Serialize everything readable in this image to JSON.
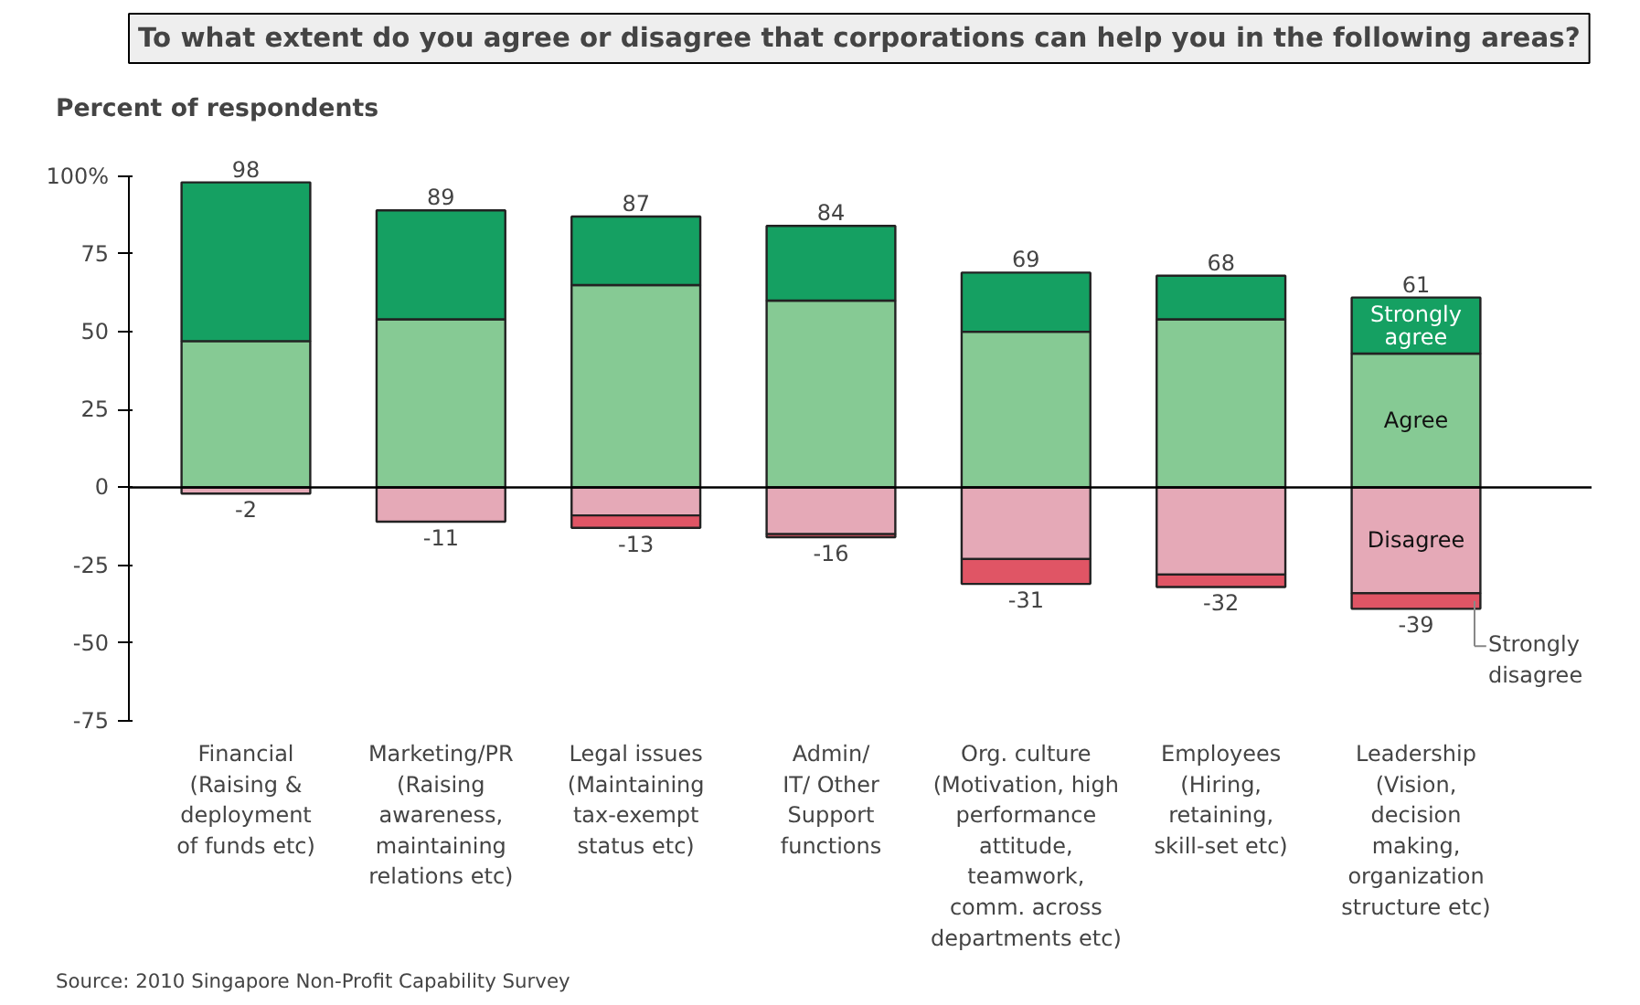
{
  "chart_data": {
    "type": "bar",
    "stacked": true,
    "title": "To what extent do you agree or disagree that corporations can help you in the following areas?",
    "ylabel": "Percent of respondents",
    "categories": [
      "Financial\n(Raising &\ndeployment\nof funds etc)",
      "Marketing/PR\n(Raising\nawareness,\nmaintaining\nrelations etc)",
      "Legal issues\n(Maintaining\ntax-exempt\nstatus etc)",
      "Admin/\nIT/ Other\nSupport\nfunctions",
      "Org. culture\n(Motivation, high\nperformance\nattitude,\nteamwork,\ncomm. across\ndepartments etc)",
      "Employees\n(Hiring,\nretaining,\nskill-set etc)",
      "Leadership\n(Vision,\ndecision\nmaking,\norganization\nstructure etc)"
    ],
    "series": [
      {
        "name": "Agree",
        "color": "#86ca94",
        "values": [
          47,
          54,
          65,
          60,
          50,
          54,
          43
        ]
      },
      {
        "name": "Strongly agree",
        "color": "#15a062",
        "values": [
          51,
          35,
          22,
          24,
          19,
          14,
          18
        ]
      },
      {
        "name": "Disagree",
        "color": "#e5a9b7",
        "values": [
          -2,
          -11,
          -9,
          -15,
          -23,
          -28,
          -34
        ]
      },
      {
        "name": "Strongly disagree",
        "color": "#e05565",
        "values": [
          0,
          0,
          -4,
          -1,
          -8,
          -4,
          -5
        ]
      }
    ],
    "totals": [
      [
        "98",
        "-2"
      ],
      [
        "89",
        "-11"
      ],
      [
        "87",
        "-13"
      ],
      [
        "84",
        "-16"
      ],
      [
        "69",
        "-31"
      ],
      [
        "68",
        "-32"
      ],
      [
        "61",
        "-39"
      ]
    ],
    "ylim": [
      -75,
      100
    ],
    "yticks": [
      {
        "value": 100,
        "label": "100%"
      },
      75,
      50,
      25,
      0,
      -25,
      -50,
      -75
    ],
    "ref_lines": [
      {
        "axis": "y",
        "value": 0
      }
    ],
    "grid": false,
    "legend": false,
    "annotations": [
      "Source: 2010 Singapore Non-Profit Capability Survey"
    ]
  }
}
